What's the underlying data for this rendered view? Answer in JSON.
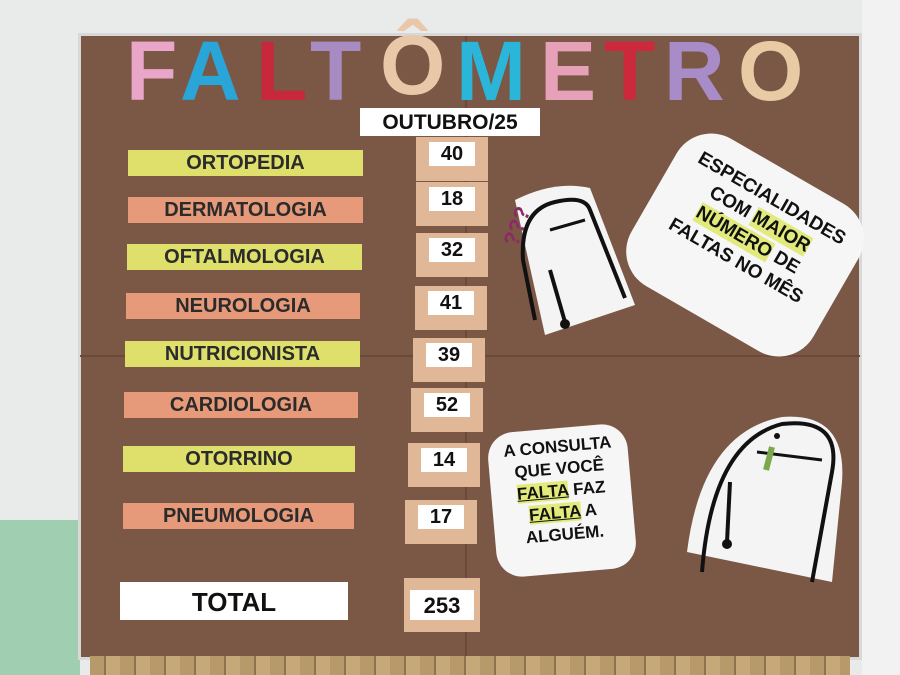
{
  "title": {
    "letters": [
      {
        "char": "F",
        "color": "#e9a6c9"
      },
      {
        "char": "A",
        "color": "#2aa5d8"
      },
      {
        "char": "L",
        "color": "#c8283c"
      },
      {
        "char": "T",
        "color": "#a98bc4"
      },
      {
        "char": "Ô",
        "color": "#e8c8a8"
      },
      {
        "char": "M",
        "color": "#2bb5d8"
      },
      {
        "char": "E",
        "color": "#e6a1b8"
      },
      {
        "char": "T",
        "color": "#cc2a3c"
      },
      {
        "char": "R",
        "color": "#a88cc8"
      },
      {
        "char": "O",
        "color": "#e8caa5"
      }
    ]
  },
  "month": "OUTUBRO/25",
  "rows": [
    {
      "label": "ORTOPEDIA",
      "value": "40"
    },
    {
      "label": "DERMATOLOGIA",
      "value": "18"
    },
    {
      "label": "OFTALMOLOGIA",
      "value": "32"
    },
    {
      "label": "NEUROLOGIA",
      "value": "41"
    },
    {
      "label": "NUTRICIONISTA",
      "value": "39"
    },
    {
      "label": "CARDIOLOGIA",
      "value": "52"
    },
    {
      "label": "OTORRINO",
      "value": "14"
    },
    {
      "label": "PNEUMOLOGIA",
      "value": "17"
    }
  ],
  "total": {
    "label": "TOTAL",
    "value": "253"
  },
  "note1": {
    "l1": "ESPECIALIDADES",
    "l2a": "COM ",
    "l2b": "MAIOR",
    "l3a": "NÚMERO",
    "l3b": " DE",
    "l4": "FALTAS NO MÊS"
  },
  "note2": {
    "l1": "A CONSULTA",
    "l2": "QUE VOCÊ",
    "l3a": "FALTA",
    "l3b": " FAZ",
    "l4a": "FALTA",
    "l4b": " A",
    "l5": "ALGUÉM."
  },
  "question_marks": "???",
  "colors": {
    "board": "#7b5746",
    "yellow_strip": "#dfe06b",
    "orange_strip": "#e79a7a"
  }
}
